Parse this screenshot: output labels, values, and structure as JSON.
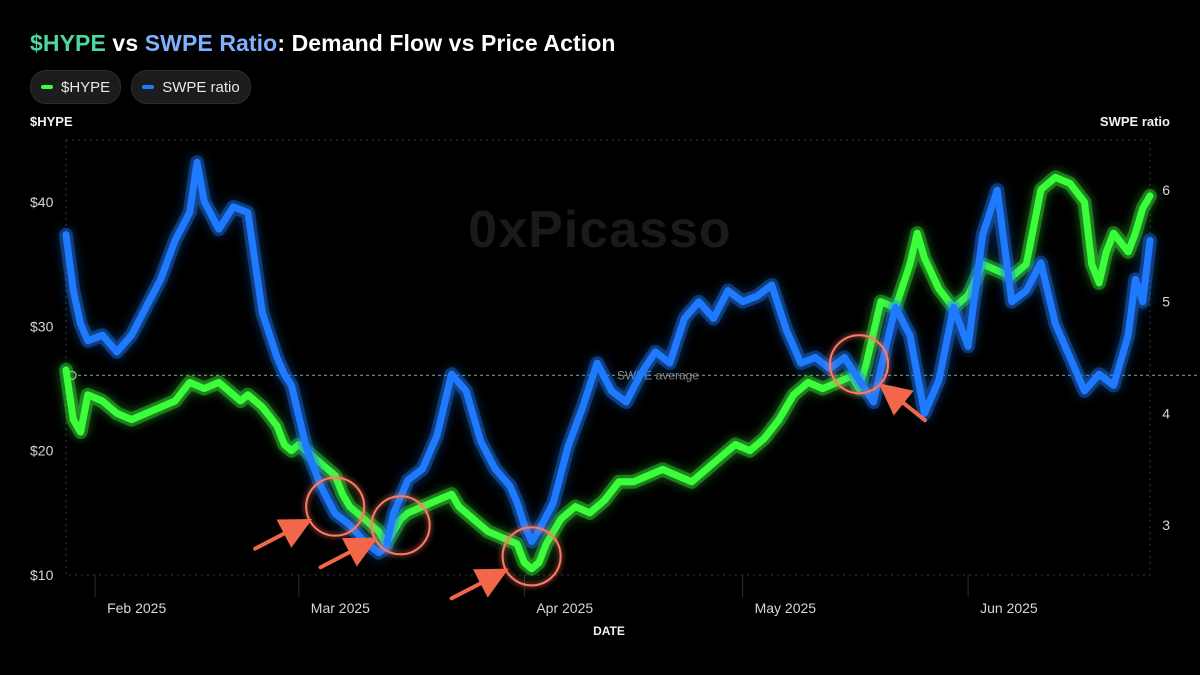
{
  "title": {
    "part1": "$HYPE",
    "part2": " vs ",
    "part3": "SWPE Ratio",
    "part4": ": Demand Flow vs Price Action"
  },
  "legend": [
    {
      "label": "$HYPE",
      "color": "#3cff3c"
    },
    {
      "label": "SWPE ratio",
      "color": "#1e7bff"
    }
  ],
  "watermark": "0xPicasso",
  "colors": {
    "hype": "#3cff3c",
    "swpe": "#1e7bff",
    "circle": "#ff7a66",
    "arrow": "#f2664a",
    "grid": "#3a3a3a"
  },
  "chart_data": {
    "type": "line",
    "xlabel": "DATE",
    "ylabel_left": "$HYPE",
    "ylabel_right": "SWPE ratio",
    "ylim_left": [
      10,
      45
    ],
    "ylim_right": [
      2.55,
      6.45
    ],
    "left_ticks": [
      "$10",
      "$20",
      "$30",
      "$40"
    ],
    "left_tick_values": [
      10,
      20,
      30,
      40
    ],
    "right_ticks": [
      "3",
      "4",
      "5",
      "6"
    ],
    "right_tick_values": [
      3,
      4,
      5,
      6
    ],
    "x_range": [
      "2025-01-28",
      "2025-06-26"
    ],
    "x_ticks": [
      {
        "label": "Feb 2025",
        "date": "2025-02-01"
      },
      {
        "label": "Mar 2025",
        "date": "2025-03-01"
      },
      {
        "label": "Apr 2025",
        "date": "2025-04-01"
      },
      {
        "label": "May 2025",
        "date": "2025-05-01"
      },
      {
        "label": "Jun 2025",
        "date": "2025-06-01"
      }
    ],
    "reference_line": {
      "label": "SWPE average",
      "value": 4.34,
      "axis": "right"
    },
    "series": [
      {
        "name": "$HYPE",
        "axis": "left",
        "points": [
          [
            "2025-01-28",
            26.5
          ],
          [
            "2025-01-29",
            22.5
          ],
          [
            "2025-01-30",
            21.5
          ],
          [
            "2025-01-31",
            24.5
          ],
          [
            "2025-02-02",
            24.0
          ],
          [
            "2025-02-04",
            23.0
          ],
          [
            "2025-02-06",
            22.5
          ],
          [
            "2025-02-08",
            23.0
          ],
          [
            "2025-02-10",
            23.5
          ],
          [
            "2025-02-12",
            24.0
          ],
          [
            "2025-02-14",
            25.5
          ],
          [
            "2025-02-16",
            25.0
          ],
          [
            "2025-02-18",
            25.5
          ],
          [
            "2025-02-20",
            24.5
          ],
          [
            "2025-02-21",
            24.0
          ],
          [
            "2025-02-22",
            24.5
          ],
          [
            "2025-02-24",
            23.5
          ],
          [
            "2025-02-26",
            22.0
          ],
          [
            "2025-02-27",
            20.5
          ],
          [
            "2025-02-28",
            20.0
          ],
          [
            "2025-03-01",
            20.5
          ],
          [
            "2025-03-03",
            19.5
          ],
          [
            "2025-03-05",
            18.5
          ],
          [
            "2025-03-06",
            18.0
          ],
          [
            "2025-03-07",
            16.5
          ],
          [
            "2025-03-08",
            15.5
          ],
          [
            "2025-03-10",
            14.5
          ],
          [
            "2025-03-12",
            13.5
          ],
          [
            "2025-03-13",
            12.5
          ],
          [
            "2025-03-14",
            13.5
          ],
          [
            "2025-03-15",
            14.5
          ],
          [
            "2025-03-16",
            15.0
          ],
          [
            "2025-03-18",
            15.5
          ],
          [
            "2025-03-20",
            16.0
          ],
          [
            "2025-03-22",
            16.5
          ],
          [
            "2025-03-23",
            15.5
          ],
          [
            "2025-03-25",
            14.5
          ],
          [
            "2025-03-27",
            13.5
          ],
          [
            "2025-03-29",
            13.0
          ],
          [
            "2025-03-31",
            12.5
          ],
          [
            "2025-04-01",
            11.0
          ],
          [
            "2025-04-02",
            10.5
          ],
          [
            "2025-04-03",
            11.0
          ],
          [
            "2025-04-04",
            12.5
          ],
          [
            "2025-04-06",
            14.5
          ],
          [
            "2025-04-08",
            15.5
          ],
          [
            "2025-04-10",
            15.0
          ],
          [
            "2025-04-12",
            16.0
          ],
          [
            "2025-04-14",
            17.5
          ],
          [
            "2025-04-16",
            17.5
          ],
          [
            "2025-04-18",
            18.0
          ],
          [
            "2025-04-20",
            18.5
          ],
          [
            "2025-04-22",
            18.0
          ],
          [
            "2025-04-24",
            17.5
          ],
          [
            "2025-04-26",
            18.5
          ],
          [
            "2025-04-28",
            19.5
          ],
          [
            "2025-04-30",
            20.5
          ],
          [
            "2025-05-02",
            20.0
          ],
          [
            "2025-05-04",
            21.0
          ],
          [
            "2025-05-06",
            22.5
          ],
          [
            "2025-05-08",
            24.5
          ],
          [
            "2025-05-10",
            25.5
          ],
          [
            "2025-05-12",
            25.0
          ],
          [
            "2025-05-14",
            25.5
          ],
          [
            "2025-05-16",
            26.0
          ],
          [
            "2025-05-17",
            25.0
          ],
          [
            "2025-05-18",
            27.0
          ],
          [
            "2025-05-20",
            32.0
          ],
          [
            "2025-05-22",
            31.5
          ],
          [
            "2025-05-24",
            35.0
          ],
          [
            "2025-05-25",
            37.5
          ],
          [
            "2025-05-26",
            35.5
          ],
          [
            "2025-05-28",
            33.0
          ],
          [
            "2025-05-30",
            31.5
          ],
          [
            "2025-06-01",
            32.5
          ],
          [
            "2025-06-03",
            35.0
          ],
          [
            "2025-06-05",
            34.5
          ],
          [
            "2025-06-07",
            34.0
          ],
          [
            "2025-06-09",
            35.0
          ],
          [
            "2025-06-11",
            41.0
          ],
          [
            "2025-06-13",
            42.0
          ],
          [
            "2025-06-15",
            41.5
          ],
          [
            "2025-06-17",
            40.0
          ],
          [
            "2025-06-18",
            35.0
          ],
          [
            "2025-06-19",
            33.5
          ],
          [
            "2025-06-20",
            36.0
          ],
          [
            "2025-06-21",
            37.5
          ],
          [
            "2025-06-23",
            36.0
          ],
          [
            "2025-06-24",
            37.5
          ],
          [
            "2025-06-25",
            39.5
          ],
          [
            "2025-06-26",
            40.5
          ]
        ]
      },
      {
        "name": "SWPE ratio",
        "axis": "right",
        "points": [
          [
            "2025-01-28",
            5.6
          ],
          [
            "2025-01-29",
            5.1
          ],
          [
            "2025-01-30",
            4.8
          ],
          [
            "2025-01-31",
            4.65
          ],
          [
            "2025-02-02",
            4.7
          ],
          [
            "2025-02-04",
            4.55
          ],
          [
            "2025-02-06",
            4.7
          ],
          [
            "2025-02-08",
            4.95
          ],
          [
            "2025-02-10",
            5.2
          ],
          [
            "2025-02-12",
            5.55
          ],
          [
            "2025-02-14",
            5.8
          ],
          [
            "2025-02-15",
            6.25
          ],
          [
            "2025-02-16",
            5.9
          ],
          [
            "2025-02-18",
            5.65
          ],
          [
            "2025-02-20",
            5.85
          ],
          [
            "2025-02-22",
            5.8
          ],
          [
            "2025-02-24",
            4.9
          ],
          [
            "2025-02-26",
            4.5
          ],
          [
            "2025-02-27",
            4.35
          ],
          [
            "2025-02-28",
            4.25
          ],
          [
            "2025-03-02",
            3.7
          ],
          [
            "2025-03-04",
            3.35
          ],
          [
            "2025-03-06",
            3.1
          ],
          [
            "2025-03-08",
            3.0
          ],
          [
            "2025-03-10",
            2.85
          ],
          [
            "2025-03-12",
            2.75
          ],
          [
            "2025-03-13",
            2.8
          ],
          [
            "2025-03-14",
            3.1
          ],
          [
            "2025-03-16",
            3.4
          ],
          [
            "2025-03-18",
            3.5
          ],
          [
            "2025-03-20",
            3.8
          ],
          [
            "2025-03-22",
            4.35
          ],
          [
            "2025-03-24",
            4.2
          ],
          [
            "2025-03-26",
            3.75
          ],
          [
            "2025-03-28",
            3.5
          ],
          [
            "2025-03-30",
            3.35
          ],
          [
            "2025-03-31",
            3.2
          ],
          [
            "2025-04-01",
            3.0
          ],
          [
            "2025-04-02",
            2.85
          ],
          [
            "2025-04-03",
            2.95
          ],
          [
            "2025-04-05",
            3.2
          ],
          [
            "2025-04-07",
            3.7
          ],
          [
            "2025-04-09",
            4.05
          ],
          [
            "2025-04-11",
            4.45
          ],
          [
            "2025-04-13",
            4.2
          ],
          [
            "2025-04-15",
            4.1
          ],
          [
            "2025-04-17",
            4.35
          ],
          [
            "2025-04-19",
            4.55
          ],
          [
            "2025-04-21",
            4.45
          ],
          [
            "2025-04-23",
            4.85
          ],
          [
            "2025-04-25",
            5.0
          ],
          [
            "2025-04-27",
            4.85
          ],
          [
            "2025-04-29",
            5.1
          ],
          [
            "2025-05-01",
            5.0
          ],
          [
            "2025-05-03",
            5.05
          ],
          [
            "2025-05-05",
            5.15
          ],
          [
            "2025-05-07",
            4.75
          ],
          [
            "2025-05-09",
            4.45
          ],
          [
            "2025-05-11",
            4.5
          ],
          [
            "2025-05-13",
            4.4
          ],
          [
            "2025-05-15",
            4.5
          ],
          [
            "2025-05-17",
            4.3
          ],
          [
            "2025-05-19",
            4.1
          ],
          [
            "2025-05-20",
            4.4
          ],
          [
            "2025-05-22",
            4.95
          ],
          [
            "2025-05-24",
            4.7
          ],
          [
            "2025-05-26",
            4.0
          ],
          [
            "2025-05-28",
            4.3
          ],
          [
            "2025-05-30",
            4.95
          ],
          [
            "2025-06-01",
            4.6
          ],
          [
            "2025-06-03",
            5.6
          ],
          [
            "2025-06-05",
            6.0
          ],
          [
            "2025-06-07",
            5.0
          ],
          [
            "2025-06-09",
            5.1
          ],
          [
            "2025-06-11",
            5.35
          ],
          [
            "2025-06-13",
            4.8
          ],
          [
            "2025-06-15",
            4.5
          ],
          [
            "2025-06-17",
            4.2
          ],
          [
            "2025-06-19",
            4.35
          ],
          [
            "2025-06-21",
            4.25
          ],
          [
            "2025-06-23",
            4.7
          ],
          [
            "2025-06-24",
            5.2
          ],
          [
            "2025-06-25",
            5.0
          ],
          [
            "2025-06-26",
            5.55
          ]
        ]
      }
    ],
    "highlights": [
      {
        "date": "2025-03-06",
        "value": 15.5,
        "axis": "left"
      },
      {
        "date": "2025-03-15",
        "value": 14.0,
        "axis": "left"
      },
      {
        "date": "2025-04-02",
        "value": 11.5,
        "axis": "left"
      },
      {
        "date": "2025-05-17",
        "value": 4.44,
        "axis": "right"
      }
    ]
  }
}
